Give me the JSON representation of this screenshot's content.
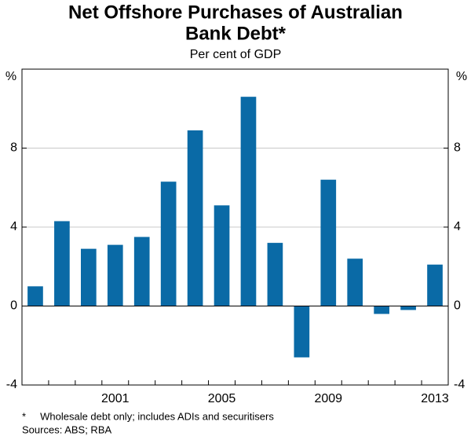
{
  "chart_data": {
    "type": "bar",
    "title": [
      "Net Offshore Purchases of Australian",
      "Bank Debt*"
    ],
    "subtitle": "Per cent of GDP",
    "y_label": "%",
    "y2_label": "%",
    "categories": [
      null,
      null,
      null,
      "2001",
      null,
      null,
      null,
      "2005",
      null,
      null,
      null,
      "2009",
      null,
      null,
      null,
      "2013"
    ],
    "values": [
      1.0,
      4.3,
      2.9,
      3.1,
      3.5,
      6.3,
      8.9,
      5.1,
      10.6,
      3.2,
      -2.6,
      6.4,
      2.4,
      -0.4,
      -0.2,
      2.1
    ],
    "color": "#0a6aa6",
    "ylim": [
      -4,
      12
    ],
    "yticks": [
      -4,
      0,
      4,
      8
    ],
    "y2lim": [
      -4,
      12
    ],
    "y2ticks": [
      -4,
      0,
      4,
      8
    ],
    "grid": true,
    "footnote": "*     Wholesale debt only; includes ADIs and securitisers",
    "sources": "Sources: ABS; RBA"
  }
}
